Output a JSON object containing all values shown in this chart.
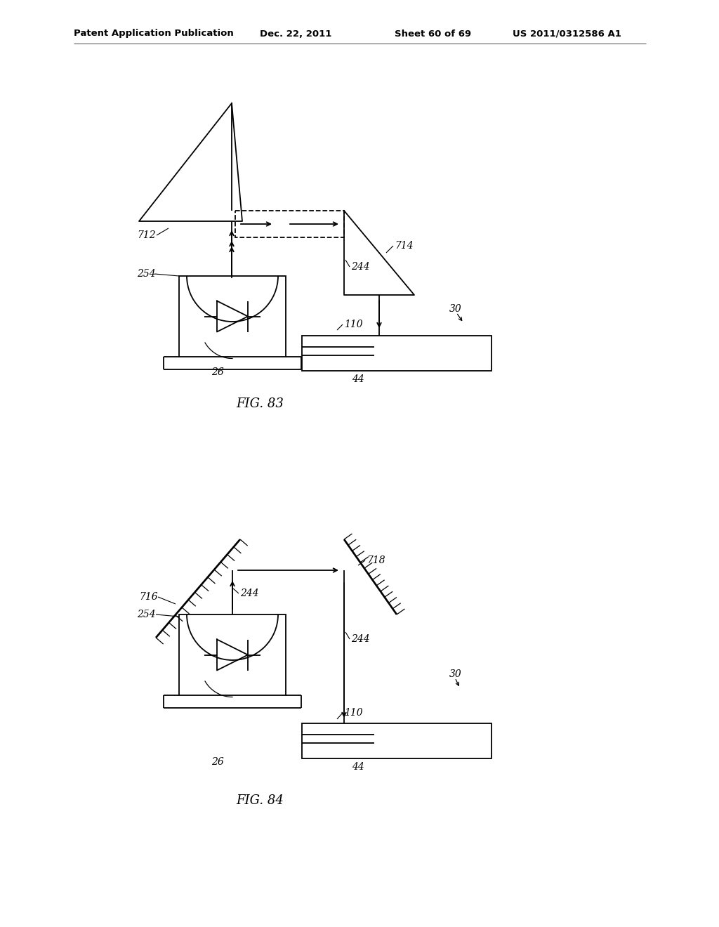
{
  "bg_color": "#ffffff",
  "line_color": "#000000",
  "header_text": "Patent Application Publication",
  "header_date": "Dec. 22, 2011",
  "header_sheet": "Sheet 60 of 69",
  "header_patent": "US 2011/0312586 A1",
  "fig83_caption": "FIG. 83",
  "fig84_caption": "FIG. 84"
}
